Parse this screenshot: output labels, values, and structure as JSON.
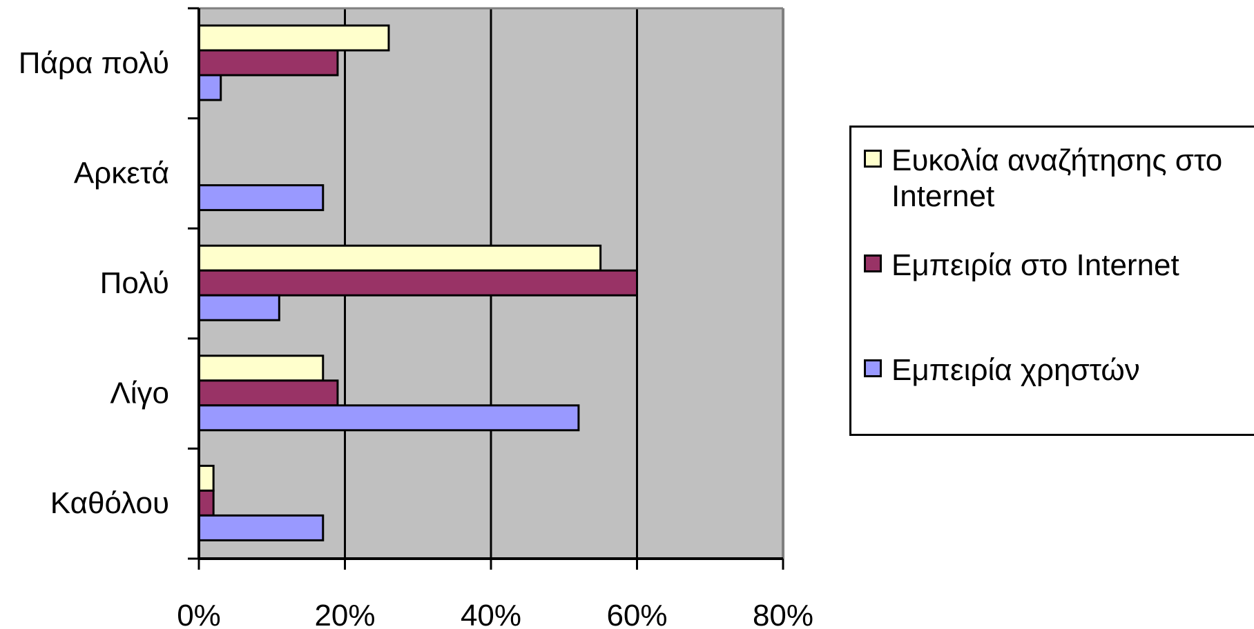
{
  "chart_data": {
    "type": "bar",
    "orientation": "horizontal",
    "categories": [
      "Πάρα πολύ",
      "Αρκετά",
      "Πολύ",
      "Λίγο",
      "Καθόλου"
    ],
    "series": [
      {
        "name": "Ευκολία αναζήτησης στο Internet",
        "values": [
          26,
          0,
          55,
          17,
          2
        ],
        "color": "#FFFFCC"
      },
      {
        "name": "Εμπειρία στο Internet",
        "values": [
          19,
          0,
          60,
          19,
          2
        ],
        "color": "#993366"
      },
      {
        "name": "Εμπειρία χρηστών",
        "values": [
          3,
          17,
          11,
          52,
          17
        ],
        "color": "#9999FF"
      }
    ],
    "xlim": [
      0,
      80
    ],
    "xticks": [
      "0%",
      "20%",
      "40%",
      "60%",
      "80%"
    ],
    "grid": true,
    "plot_background": "#C0C0C0",
    "legend_position": "right",
    "title": "",
    "xlabel": "",
    "ylabel": ""
  }
}
